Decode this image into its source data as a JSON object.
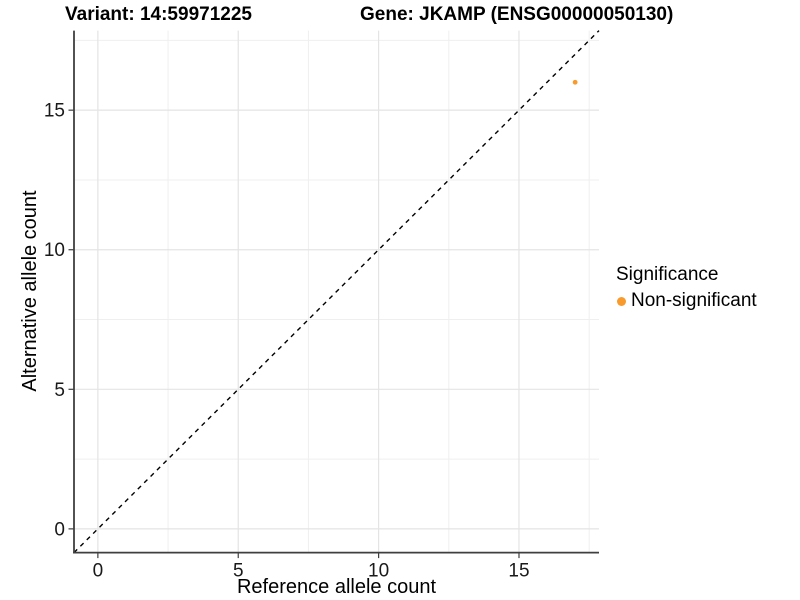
{
  "header": {
    "variant_title": "Variant: 14:59971225",
    "gene_title": "Gene: JKAMP (ENSG00000050130)"
  },
  "chart_data": {
    "type": "scatter",
    "title_left": "Variant: 14:59971225",
    "title_right": "Gene: JKAMP (ENSG00000050130)",
    "xlabel": "Reference allele count",
    "ylabel": "Alternative allele count",
    "xlim": [
      -0.85,
      17.85
    ],
    "ylim": [
      -0.85,
      17.85
    ],
    "x_major_ticks": [
      0,
      5,
      10,
      15
    ],
    "y_major_ticks": [
      0,
      5,
      10,
      15
    ],
    "x_minor_ticks": [
      2.5,
      7.5,
      12.5,
      17.5
    ],
    "y_minor_ticks": [
      2.5,
      7.5,
      12.5,
      17.5
    ],
    "grid": true,
    "reference_line": {
      "style": "dashed",
      "slope": 1,
      "intercept": 0,
      "color": "#000000"
    },
    "series": [
      {
        "name": "Non-significant",
        "color": "#F89B2C",
        "points": [
          {
            "x": 17,
            "y": 16
          }
        ]
      }
    ],
    "legend": {
      "title": "Significance",
      "position": "right",
      "entries": [
        {
          "label": "Non-significant",
          "color": "#F89B2C"
        }
      ]
    },
    "colors": {
      "major_grid": "#e4e4e4",
      "minor_grid": "#efefef",
      "axis_line": "#3f3f3f",
      "tick_text": "#1a1a1a"
    }
  }
}
